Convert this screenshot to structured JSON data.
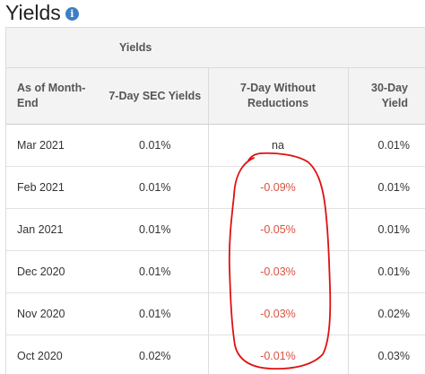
{
  "page": {
    "title": "Yields",
    "info_icon": "info-icon",
    "info_glyph": "i"
  },
  "table": {
    "group_header": "Yields",
    "columns": [
      "As of Month-End",
      "7-Day SEC Yields",
      "7-Day Without Reductions",
      "30-Day Yield"
    ],
    "rows": [
      {
        "date": "Mar 2021",
        "sec": "0.01%",
        "without": "na",
        "thirty": "0.01%"
      },
      {
        "date": "Feb 2021",
        "sec": "0.01%",
        "without": "-0.09%",
        "thirty": "0.01%"
      },
      {
        "date": "Jan 2021",
        "sec": "0.01%",
        "without": "-0.05%",
        "thirty": "0.01%"
      },
      {
        "date": "Dec 2020",
        "sec": "0.01%",
        "without": "-0.03%",
        "thirty": "0.01%"
      },
      {
        "date": "Nov 2020",
        "sec": "0.01%",
        "without": "-0.03%",
        "thirty": "0.02%"
      },
      {
        "date": "Oct 2020",
        "sec": "0.02%",
        "without": "-0.01%",
        "thirty": "0.03%"
      }
    ]
  },
  "colors": {
    "negative_value": "#d9533f",
    "annotation_stroke": "#e01010",
    "info_icon": "#3b7fc4",
    "header_bg": "#f3f3f3"
  }
}
